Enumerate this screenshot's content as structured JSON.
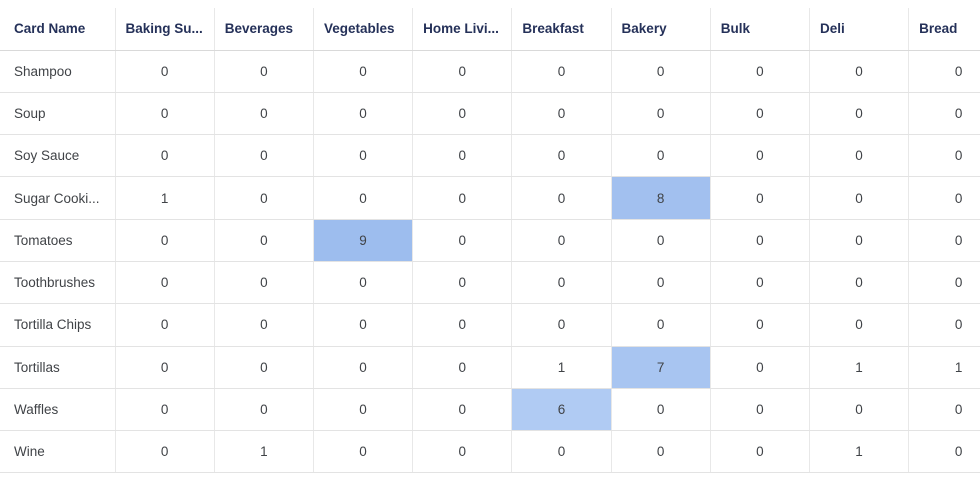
{
  "chart_data": {
    "type": "table",
    "title": "",
    "columns": [
      "Card Name",
      "Baking Su...",
      "Beverages",
      "Vegetables",
      "Home Livi...",
      "Breakfast",
      "Bakery",
      "Bulk",
      "Deli",
      "Bread"
    ],
    "rows": [
      {
        "label": "Shampoo",
        "values": [
          0,
          0,
          0,
          0,
          0,
          0,
          0,
          0,
          0
        ],
        "highlights": {}
      },
      {
        "label": "Soup",
        "values": [
          0,
          0,
          0,
          0,
          0,
          0,
          0,
          0,
          0
        ],
        "highlights": {}
      },
      {
        "label": "Soy Sauce",
        "values": [
          0,
          0,
          0,
          0,
          0,
          0,
          0,
          0,
          0
        ],
        "highlights": {}
      },
      {
        "label": "Sugar Cooki...",
        "values": [
          1,
          0,
          0,
          0,
          0,
          8,
          0,
          0,
          0
        ],
        "highlights": {
          "5": "#a2c0ef"
        }
      },
      {
        "label": "Tomatoes",
        "values": [
          0,
          0,
          9,
          0,
          0,
          0,
          0,
          0,
          0
        ],
        "highlights": {
          "2": "#9dbdee"
        }
      },
      {
        "label": "Toothbrushes",
        "values": [
          0,
          0,
          0,
          0,
          0,
          0,
          0,
          0,
          0
        ],
        "highlights": {}
      },
      {
        "label": "Tortilla Chips",
        "values": [
          0,
          0,
          0,
          0,
          0,
          0,
          0,
          0,
          0
        ],
        "highlights": {}
      },
      {
        "label": "Tortillas",
        "values": [
          0,
          0,
          0,
          0,
          1,
          7,
          0,
          1,
          1
        ],
        "highlights": {
          "5": "#a8c5f1"
        }
      },
      {
        "label": "Waffles",
        "values": [
          0,
          0,
          0,
          0,
          6,
          0,
          0,
          0,
          0
        ],
        "highlights": {
          "4": "#b0cbf3"
        }
      },
      {
        "label": "Wine",
        "values": [
          0,
          1,
          0,
          0,
          0,
          0,
          0,
          1,
          0
        ],
        "highlights": {}
      }
    ]
  },
  "colors": {
    "header_text": "#253159",
    "body_text": "#404347",
    "gridline": "#e3e3e3",
    "header_gridline": "#d9d9d9",
    "highlight_9": "#9dbdee",
    "highlight_8": "#a2c0ef",
    "highlight_7": "#a8c5f1",
    "highlight_6": "#b0cbf3",
    "background": "#ffffff"
  }
}
